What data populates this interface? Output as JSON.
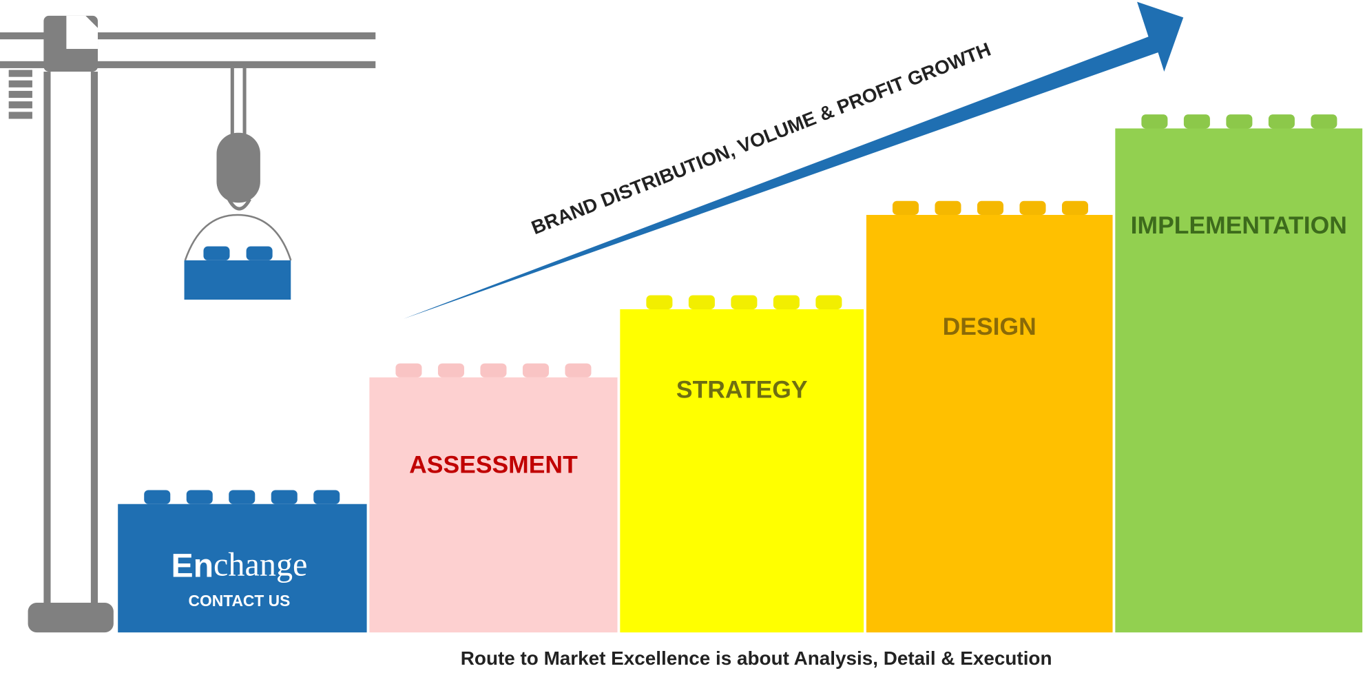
{
  "logo": {
    "bold": "En",
    "rest": "change"
  },
  "contact": "CONTACT US",
  "steps": [
    "ASSESSMENT",
    "STRATEGY",
    "DESIGN",
    "IMPLEMENTATION"
  ],
  "arrow_label": "BRAND DISTRIBUTION, VOLUME & PROFIT GROWTH",
  "caption": "Route to Market Excellence is about Analysis, Detail & Execution"
}
